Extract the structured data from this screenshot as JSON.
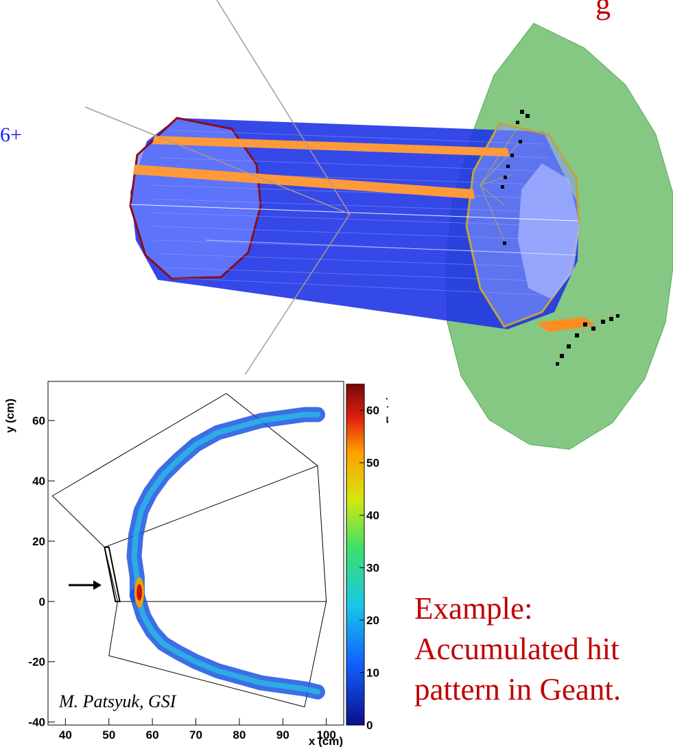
{
  "header_fragment": "g",
  "side_fragment": "6+",
  "caption": {
    "lines": [
      "Example:",
      "Accumulated hit",
      "pattern in Geant."
    ]
  },
  "credit": "M. Patsyuk, GSI",
  "colors": {
    "caption": "#c00000",
    "side_text": "#1a1aff",
    "barrel": "#1a2ee6",
    "stripe": "#ff9a3a",
    "disk": "#66bb66"
  },
  "chart_data": {
    "type": "heatmap",
    "title": "",
    "xlabel": "x (cm)",
    "ylabel": "y (cm)",
    "xlim": [
      36,
      104
    ],
    "ylim": [
      -41,
      73
    ],
    "x_ticks": [
      "40",
      "50",
      "60",
      "70",
      "80",
      "90",
      "100"
    ],
    "y_ticks": [
      "-40",
      "-20",
      "0",
      "20",
      "40",
      "60"
    ],
    "colorbar": {
      "label": "nEntries",
      "range": [
        0,
        65
      ],
      "ticks": [
        "0",
        "10",
        "20",
        "30",
        "40",
        "50",
        "60"
      ]
    },
    "bands": [
      {
        "x": [
          56.5,
          56.5,
          55.8,
          56.2,
          57.4,
          59.5,
          62.5,
          66,
          70,
          75,
          80,
          85,
          90,
          95,
          98
        ],
        "y": [
          2,
          8,
          15,
          22,
          30,
          36,
          42,
          47,
          52,
          56,
          58,
          60,
          61,
          62,
          62
        ]
      },
      {
        "x": [
          56.5,
          58,
          60,
          62.5,
          66,
          70,
          75,
          80,
          85,
          90,
          95,
          98
        ],
        "y": [
          2,
          -5,
          -10,
          -14,
          -17,
          -20,
          -23,
          -25,
          -27,
          -28,
          -29,
          -30
        ]
      }
    ]
  }
}
